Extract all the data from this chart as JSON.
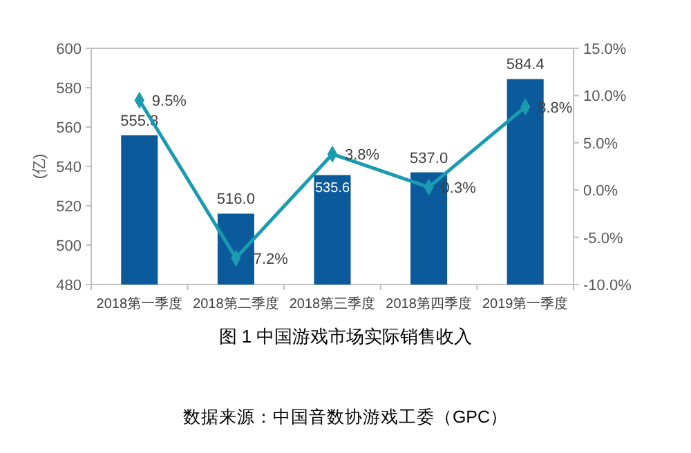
{
  "chart_data": {
    "type": "bar",
    "title": "图 1 中国游戏市场实际销售收入",
    "ylabel": "(亿)",
    "annotations": [
      "数据来源：中国音数协游戏工委（GPC）"
    ],
    "categories": [
      "2018第一季度",
      "2018第二季度",
      "2018第三季度",
      "2018第四季度",
      "2019第一季度"
    ],
    "series": [
      {
        "color": "#0a5a9c",
        "values": [
          555.8,
          516.0,
          535.6,
          537.0,
          584.4
        ],
        "value_labels": [
          "555.8",
          "516.0",
          "535.6",
          "537.0",
          "584.4"
        ]
      },
      {
        "type": "line",
        "axis": "y2",
        "color": "#1a9bb0",
        "marker": "diamond",
        "values": [
          9.5,
          -7.2,
          3.8,
          0.3,
          8.8
        ],
        "value_labels": [
          "9.5%",
          "-7.2%",
          "3.8%",
          "0.3%",
          "8.8%"
        ]
      }
    ],
    "ylim": [
      480,
      600
    ],
    "yticks": [
      480,
      500,
      520,
      540,
      560,
      580,
      600
    ],
    "y2lim": [
      -10,
      15
    ],
    "y2ticks": [
      {
        "value": -10,
        "label": "-10.0%"
      },
      {
        "value": -5,
        "label": "-5.0%"
      },
      {
        "value": 0,
        "label": "0.0%"
      },
      {
        "value": 5,
        "label": "5.0%"
      },
      {
        "value": 10,
        "label": "10.0%"
      },
      {
        "value": 15,
        "label": "15.0%"
      }
    ],
    "grid": false,
    "legend": false
  }
}
